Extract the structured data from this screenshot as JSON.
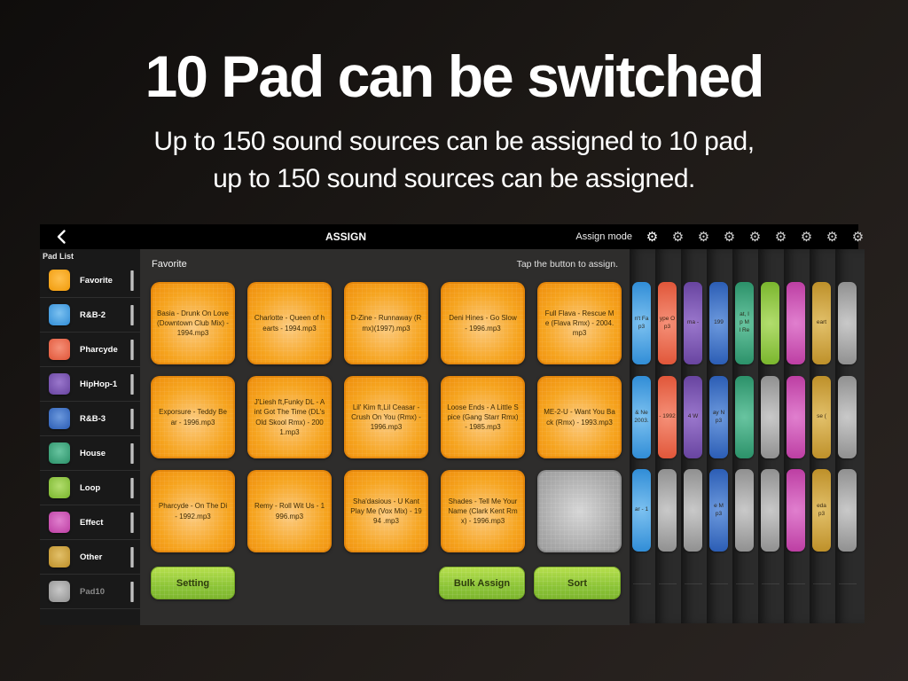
{
  "hero": {
    "title": "10 Pad can be switched",
    "subtitle_line1": "Up to 150 sound sources can be assigned to 10 pad,",
    "subtitle_line2": "up to 150 sound sources can be assigned."
  },
  "header": {
    "title": "ASSIGN",
    "mode_label": "Assign mode",
    "gear_icon": "⚙",
    "gear_count": 9
  },
  "sidebar": {
    "title": "Pad List",
    "items": [
      {
        "label": "Favorite",
        "center": "#ffc04d",
        "edge": "#f09a0a",
        "dim": false
      },
      {
        "label": "R&B-2",
        "center": "#7cc1f0",
        "edge": "#2f8cd6",
        "dim": false
      },
      {
        "label": "Pharcyde",
        "center": "#f59078",
        "edge": "#e05538",
        "dim": false
      },
      {
        "label": "HipHop-1",
        "center": "#9a77cc",
        "edge": "#67439f",
        "dim": false
      },
      {
        "label": "R&B-3",
        "center": "#6c99dd",
        "edge": "#2a5cb4",
        "dim": false
      },
      {
        "label": "House",
        "center": "#68c4a0",
        "edge": "#2a9068",
        "dim": false
      },
      {
        "label": "Loop",
        "center": "#b2dd6e",
        "edge": "#79b52c",
        "dim": false
      },
      {
        "label": "Effect",
        "center": "#e07fce",
        "edge": "#bc3da2",
        "dim": false
      },
      {
        "label": "Other",
        "center": "#e2c06a",
        "edge": "#bd8f28",
        "dim": false
      },
      {
        "label": "Pad10",
        "center": "#c8c8c8",
        "edge": "#909090",
        "dim": true
      }
    ]
  },
  "panel": {
    "title": "Favorite",
    "hint": "Tap the button to assign.",
    "pads": [
      {
        "label": "Basia - Drunk On Love (Downtown Club Mix) - 1994.mp3",
        "empty": false
      },
      {
        "label": "Charlotte - Queen of hearts - 1994.mp3",
        "empty": false
      },
      {
        "label": "D-Zine - Runnaway (Rmx)(1997).mp3",
        "empty": false
      },
      {
        "label": "Deni Hines - Go Slow - 1996.mp3",
        "empty": false
      },
      {
        "label": "Full Flava - Rescue Me (Flava Rmx) - 2004.mp3",
        "empty": false
      },
      {
        "label": "Exporsure - Teddy Bear - 1996.mp3",
        "empty": false
      },
      {
        "label": "J'Liesh ft,Funky DL - Aint Got The Time (DL's Old Skool Rmx) - 2001.mp3",
        "empty": false
      },
      {
        "label": "Lil' Kim ft,Lil Ceasar - Crush On You (Rmx) - 1996.mp3",
        "empty": false
      },
      {
        "label": "Loose Ends - A Little Spice (Gang Starr Rmx) - 1985.mp3",
        "empty": false
      },
      {
        "label": "ME-2-U - Want You Back (Rmx) - 1993.mp3",
        "empty": false
      },
      {
        "label": "Pharcyde - On The Di - 1992.mp3",
        "empty": false
      },
      {
        "label": "Remy - Roll Wit Us - 1996.mp3",
        "empty": false
      },
      {
        "label": "Sha'dasious - U Kant Play Me (Vox Mix) - 1994 .mp3",
        "empty": false
      },
      {
        "label": "Shades - Tell Me Your Name (Clark Kent Rmx) - 1996.mp3",
        "empty": false
      },
      {
        "label": "",
        "empty": true
      }
    ],
    "buttons": [
      {
        "label": "Setting"
      },
      {
        "label": "Bulk Assign"
      },
      {
        "label": "Sort"
      }
    ]
  },
  "stacks": [
    {
      "name": "R&B-2",
      "center": "#7cc1f0",
      "edge": "#2f8cd6",
      "rows": [
        {
          "text": "n't Fa\np3",
          "empty": false
        },
        {
          "text": "& Ne\n2003.",
          "empty": false
        },
        {
          "text": "ar - 1",
          "empty": false
        }
      ]
    },
    {
      "name": "Pharcyde",
      "center": "#f59078",
      "edge": "#e05538",
      "rows": [
        {
          "text": "ype O\np3",
          "empty": false
        },
        {
          "text": "- 1992",
          "empty": false
        },
        {
          "text": "",
          "empty": true
        }
      ]
    },
    {
      "name": "HipHop-1",
      "center": "#9a77cc",
      "edge": "#67439f",
      "rows": [
        {
          "text": "ma -",
          "empty": false
        },
        {
          "text": "4 W",
          "empty": false
        },
        {
          "text": "",
          "empty": true
        }
      ]
    },
    {
      "name": "R&B-3",
      "center": "#6c99dd",
      "edge": "#2a5cb4",
      "rows": [
        {
          "text": "199",
          "empty": false
        },
        {
          "text": "ay N\np3",
          "empty": false
        },
        {
          "text": "e M\np3",
          "empty": false
        }
      ]
    },
    {
      "name": "House",
      "center": "#68c4a0",
      "edge": "#2a9068",
      "rows": [
        {
          "text": "at, I\np M\nl Re",
          "empty": false
        },
        {
          "text": "",
          "empty": false
        },
        {
          "text": "",
          "empty": true
        }
      ]
    },
    {
      "name": "Loop",
      "center": "#b2dd6e",
      "edge": "#79b52c",
      "rows": [
        {
          "text": "",
          "empty": false
        },
        {
          "text": "",
          "empty": true
        },
        {
          "text": "",
          "empty": true
        }
      ]
    },
    {
      "name": "Effect",
      "center": "#e07fce",
      "edge": "#bc3da2",
      "rows": [
        {
          "text": "",
          "empty": false
        },
        {
          "text": "",
          "empty": false
        },
        {
          "text": "",
          "empty": false
        }
      ]
    },
    {
      "name": "Other",
      "center": "#e2c06a",
      "edge": "#bd8f28",
      "rows": [
        {
          "text": "eart",
          "empty": false
        },
        {
          "text": "se (",
          "empty": false
        },
        {
          "text": "eda\np3",
          "empty": false
        }
      ]
    },
    {
      "name": "Pad10",
      "center": "#c8c8c8",
      "edge": "#909090",
      "rows": [
        {
          "text": "",
          "empty": true
        },
        {
          "text": "",
          "empty": true
        },
        {
          "text": "",
          "empty": true
        }
      ]
    }
  ]
}
